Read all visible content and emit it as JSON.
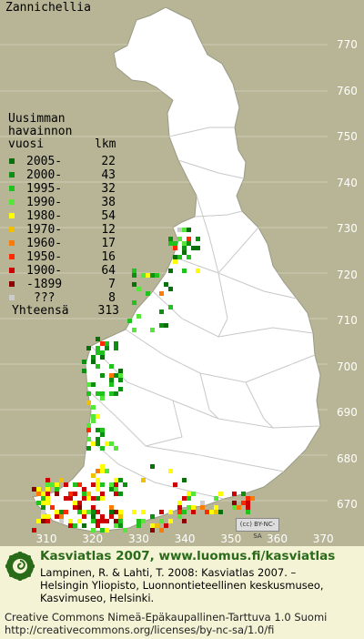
{
  "title": "Zannichellia",
  "legend": {
    "heading_lines": [
      "Uusimman",
      "havainnon",
      "vuosi"
    ],
    "count_header": "lkm",
    "items": [
      {
        "label": "2005-",
        "count": "22",
        "color": "#0a6e0a"
      },
      {
        "label": "2000-",
        "count": "43",
        "color": "#0e8f12"
      },
      {
        "label": "1995-",
        "count": "32",
        "color": "#22c21e"
      },
      {
        "label": "1990-",
        "count": "38",
        "color": "#55e63a"
      },
      {
        "label": "1980-",
        "count": "54",
        "color": "#ffff00"
      },
      {
        "label": "1970-",
        "count": "12",
        "color": "#f0c000"
      },
      {
        "label": "1960-",
        "count": "17",
        "color": "#ff7a00"
      },
      {
        "label": "1950-",
        "count": "16",
        "color": "#ff2a00"
      },
      {
        "label": "1900-",
        "count": "64",
        "color": "#cc0000"
      },
      {
        "label": "-1899",
        "count": "7",
        "color": "#8a0000"
      },
      {
        "label": "???",
        "count": "8",
        "color": "#cccccc"
      }
    ],
    "total_label": "Yhteensä",
    "total_count": "313"
  },
  "axes": {
    "y_ticks": [
      "770",
      "760",
      "750",
      "740",
      "730",
      "720",
      "710",
      "700",
      "690",
      "680",
      "670"
    ],
    "x_ticks": [
      "310",
      "320",
      "330",
      "340",
      "350",
      "360",
      "370"
    ]
  },
  "license_badge": "BY-NC-SA",
  "footer": {
    "brand": "Kasviatlas 2007, www.luomus.fi/kasviatlas",
    "citation": [
      "Lampinen, R. & Lahti, T. 2008: Kasviatlas 2007. –",
      "Helsingin Yliopisto, Luonnontieteellinen keskusmuseo,",
      "Kasvimuseo, Helsinki."
    ],
    "license": [
      "Creative Commons Nimeä-Epäkaupallinen-Tarttuva 1.0 Suomi",
      "http://creativecommons.org/licenses/by-nc-sa/1.0/fi"
    ]
  },
  "colors": {
    "map_background": "#b7b595",
    "land": "#ffffff",
    "borders": "#c8c8c8",
    "footer_background": "#f5f3d6",
    "brand_text": "#2a6b1a"
  }
}
